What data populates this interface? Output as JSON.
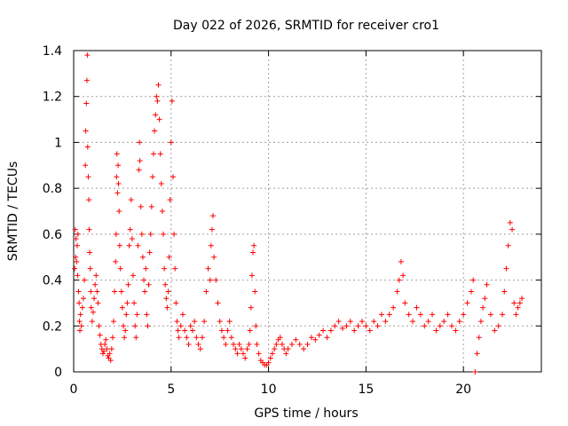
{
  "chart_data": {
    "type": "scatter",
    "title": "Day 022 of 2026, SRMTID for receiver cro1",
    "xlabel": "GPS time / hours",
    "ylabel": "SRMTID / TECUs",
    "xlim": [
      0,
      24
    ],
    "ylim": [
      0,
      1.4
    ],
    "x_ticks": [
      0,
      5,
      10,
      15,
      20
    ],
    "y_ticks": [
      0,
      0.2,
      0.4,
      0.6,
      0.8,
      1,
      1.2,
      1.4
    ],
    "x_tick_labels": [
      "0",
      "5",
      "10",
      "15",
      "20"
    ],
    "y_tick_labels": [
      "0",
      "0.2",
      "0.4",
      "0.6",
      "0.8",
      "1",
      "1.2",
      "1.4"
    ],
    "grid": true,
    "marker": "+",
    "marker_color": "#ff0000",
    "series": [
      {
        "name": "SRMTID",
        "points": [
          [
            0.05,
            0.45
          ],
          [
            0.08,
            0.62
          ],
          [
            0.1,
            0.5
          ],
          [
            0.12,
            0.58
          ],
          [
            0.15,
            0.48
          ],
          [
            0.18,
            0.55
          ],
          [
            0.2,
            0.42
          ],
          [
            0.22,
            0.6
          ],
          [
            0.25,
            0.35
          ],
          [
            0.28,
            0.3
          ],
          [
            0.3,
            0.22
          ],
          [
            0.32,
            0.18
          ],
          [
            0.35,
            0.25
          ],
          [
            0.4,
            0.2
          ],
          [
            0.45,
            0.28
          ],
          [
            0.5,
            0.32
          ],
          [
            0.55,
            0.4
          ],
          [
            0.6,
            0.9
          ],
          [
            0.62,
            1.05
          ],
          [
            0.65,
            1.17
          ],
          [
            0.68,
            1.27
          ],
          [
            0.7,
            1.38
          ],
          [
            0.72,
            0.98
          ],
          [
            0.75,
            0.85
          ],
          [
            0.78,
            0.75
          ],
          [
            0.8,
            0.62
          ],
          [
            0.82,
            0.52
          ],
          [
            0.85,
            0.45
          ],
          [
            0.88,
            0.35
          ],
          [
            0.9,
            0.28
          ],
          [
            0.95,
            0.22
          ],
          [
            1.0,
            0.26
          ],
          [
            1.05,
            0.32
          ],
          [
            1.1,
            0.38
          ],
          [
            1.15,
            0.42
          ],
          [
            1.2,
            0.35
          ],
          [
            1.25,
            0.3
          ],
          [
            1.3,
            0.2
          ],
          [
            1.35,
            0.16
          ],
          [
            1.4,
            0.12
          ],
          [
            1.45,
            0.1
          ],
          [
            1.5,
            0.08
          ],
          [
            1.55,
            0.09
          ],
          [
            1.6,
            0.12
          ],
          [
            1.65,
            0.14
          ],
          [
            1.7,
            0.1
          ],
          [
            1.75,
            0.07
          ],
          [
            1.8,
            0.06
          ],
          [
            1.85,
            0.08
          ],
          [
            1.9,
            0.05
          ],
          [
            1.95,
            0.1
          ],
          [
            2.0,
            0.15
          ],
          [
            2.05,
            0.22
          ],
          [
            2.1,
            0.35
          ],
          [
            2.15,
            0.48
          ],
          [
            2.18,
            0.6
          ],
          [
            2.2,
            0.85
          ],
          [
            2.22,
            0.95
          ],
          [
            2.25,
            0.78
          ],
          [
            2.28,
            0.9
          ],
          [
            2.3,
            0.82
          ],
          [
            2.33,
            0.7
          ],
          [
            2.36,
            0.55
          ],
          [
            2.4,
            0.45
          ],
          [
            2.45,
            0.35
          ],
          [
            2.5,
            0.28
          ],
          [
            2.55,
            0.2
          ],
          [
            2.6,
            0.15
          ],
          [
            2.65,
            0.18
          ],
          [
            2.7,
            0.25
          ],
          [
            2.75,
            0.3
          ],
          [
            2.8,
            0.38
          ],
          [
            2.85,
            0.55
          ],
          [
            2.9,
            0.62
          ],
          [
            2.95,
            0.75
          ],
          [
            3.0,
            0.58
          ],
          [
            3.05,
            0.42
          ],
          [
            3.1,
            0.3
          ],
          [
            3.15,
            0.2
          ],
          [
            3.2,
            0.15
          ],
          [
            3.25,
            0.25
          ],
          [
            3.3,
            0.55
          ],
          [
            3.35,
            0.88
          ],
          [
            3.38,
            1.0
          ],
          [
            3.4,
            0.92
          ],
          [
            3.45,
            0.72
          ],
          [
            3.5,
            0.6
          ],
          [
            3.55,
            0.5
          ],
          [
            3.6,
            0.4
          ],
          [
            3.65,
            0.35
          ],
          [
            3.7,
            0.45
          ],
          [
            3.75,
            0.25
          ],
          [
            3.8,
            0.2
          ],
          [
            3.85,
            0.38
          ],
          [
            3.9,
            0.52
          ],
          [
            3.95,
            0.6
          ],
          [
            4.0,
            0.72
          ],
          [
            4.05,
            0.85
          ],
          [
            4.1,
            0.95
          ],
          [
            4.15,
            1.05
          ],
          [
            4.2,
            1.12
          ],
          [
            4.25,
            1.2
          ],
          [
            4.3,
            1.18
          ],
          [
            4.35,
            1.25
          ],
          [
            4.4,
            1.1
          ],
          [
            4.45,
            0.95
          ],
          [
            4.5,
            0.82
          ],
          [
            4.55,
            0.7
          ],
          [
            4.6,
            0.6
          ],
          [
            4.65,
            0.45
          ],
          [
            4.7,
            0.38
          ],
          [
            4.75,
            0.32
          ],
          [
            4.8,
            0.28
          ],
          [
            4.85,
            0.35
          ],
          [
            4.9,
            0.5
          ],
          [
            4.95,
            0.75
          ],
          [
            5.0,
            1.0
          ],
          [
            5.05,
            1.18
          ],
          [
            5.1,
            0.85
          ],
          [
            5.15,
            0.6
          ],
          [
            5.2,
            0.45
          ],
          [
            5.25,
            0.3
          ],
          [
            5.3,
            0.22
          ],
          [
            5.35,
            0.18
          ],
          [
            5.4,
            0.15
          ],
          [
            5.5,
            0.2
          ],
          [
            5.6,
            0.25
          ],
          [
            5.7,
            0.18
          ],
          [
            5.8,
            0.15
          ],
          [
            5.9,
            0.12
          ],
          [
            6.0,
            0.2
          ],
          [
            6.1,
            0.18
          ],
          [
            6.2,
            0.22
          ],
          [
            6.3,
            0.15
          ],
          [
            6.4,
            0.12
          ],
          [
            6.5,
            0.1
          ],
          [
            6.6,
            0.15
          ],
          [
            6.7,
            0.22
          ],
          [
            6.8,
            0.35
          ],
          [
            6.9,
            0.45
          ],
          [
            7.0,
            0.4
          ],
          [
            7.05,
            0.55
          ],
          [
            7.1,
            0.62
          ],
          [
            7.15,
            0.68
          ],
          [
            7.2,
            0.5
          ],
          [
            7.3,
            0.4
          ],
          [
            7.4,
            0.3
          ],
          [
            7.5,
            0.22
          ],
          [
            7.6,
            0.18
          ],
          [
            7.7,
            0.15
          ],
          [
            7.8,
            0.12
          ],
          [
            7.9,
            0.18
          ],
          [
            8.0,
            0.22
          ],
          [
            8.1,
            0.15
          ],
          [
            8.2,
            0.12
          ],
          [
            8.3,
            0.1
          ],
          [
            8.4,
            0.08
          ],
          [
            8.5,
            0.12
          ],
          [
            8.6,
            0.1
          ],
          [
            8.7,
            0.08
          ],
          [
            8.8,
            0.06
          ],
          [
            8.9,
            0.1
          ],
          [
            9.0,
            0.12
          ],
          [
            9.05,
            0.18
          ],
          [
            9.1,
            0.28
          ],
          [
            9.15,
            0.42
          ],
          [
            9.2,
            0.52
          ],
          [
            9.25,
            0.55
          ],
          [
            9.3,
            0.35
          ],
          [
            9.35,
            0.2
          ],
          [
            9.4,
            0.12
          ],
          [
            9.5,
            0.08
          ],
          [
            9.6,
            0.05
          ],
          [
            9.7,
            0.04
          ],
          [
            9.8,
            0.03
          ],
          [
            9.9,
            0.03
          ],
          [
            10.0,
            0.04
          ],
          [
            10.1,
            0.06
          ],
          [
            10.2,
            0.08
          ],
          [
            10.3,
            0.1
          ],
          [
            10.4,
            0.12
          ],
          [
            10.5,
            0.14
          ],
          [
            10.6,
            0.15
          ],
          [
            10.7,
            0.12
          ],
          [
            10.8,
            0.1
          ],
          [
            10.9,
            0.08
          ],
          [
            11.0,
            0.1
          ],
          [
            11.2,
            0.12
          ],
          [
            11.4,
            0.14
          ],
          [
            11.6,
            0.12
          ],
          [
            11.8,
            0.1
          ],
          [
            12.0,
            0.12
          ],
          [
            12.2,
            0.15
          ],
          [
            12.4,
            0.14
          ],
          [
            12.6,
            0.16
          ],
          [
            12.8,
            0.18
          ],
          [
            13.0,
            0.15
          ],
          [
            13.2,
            0.18
          ],
          [
            13.4,
            0.2
          ],
          [
            13.6,
            0.22
          ],
          [
            13.8,
            0.19
          ],
          [
            14.0,
            0.2
          ],
          [
            14.2,
            0.22
          ],
          [
            14.4,
            0.18
          ],
          [
            14.6,
            0.2
          ],
          [
            14.8,
            0.22
          ],
          [
            15.0,
            0.2
          ],
          [
            15.2,
            0.18
          ],
          [
            15.4,
            0.22
          ],
          [
            15.6,
            0.2
          ],
          [
            15.8,
            0.25
          ],
          [
            16.0,
            0.22
          ],
          [
            16.2,
            0.25
          ],
          [
            16.4,
            0.28
          ],
          [
            16.6,
            0.35
          ],
          [
            16.7,
            0.4
          ],
          [
            16.8,
            0.48
          ],
          [
            16.9,
            0.42
          ],
          [
            17.0,
            0.3
          ],
          [
            17.2,
            0.25
          ],
          [
            17.4,
            0.22
          ],
          [
            17.6,
            0.28
          ],
          [
            17.8,
            0.25
          ],
          [
            18.0,
            0.2
          ],
          [
            18.2,
            0.22
          ],
          [
            18.4,
            0.25
          ],
          [
            18.6,
            0.18
          ],
          [
            18.8,
            0.2
          ],
          [
            19.0,
            0.22
          ],
          [
            19.2,
            0.25
          ],
          [
            19.4,
            0.2
          ],
          [
            19.6,
            0.18
          ],
          [
            19.8,
            0.22
          ],
          [
            20.0,
            0.25
          ],
          [
            20.2,
            0.3
          ],
          [
            20.4,
            0.35
          ],
          [
            20.5,
            0.4
          ],
          [
            20.6,
            0.0
          ],
          [
            20.7,
            0.08
          ],
          [
            20.8,
            0.15
          ],
          [
            20.9,
            0.22
          ],
          [
            21.0,
            0.28
          ],
          [
            21.1,
            0.32
          ],
          [
            21.2,
            0.38
          ],
          [
            21.4,
            0.25
          ],
          [
            21.6,
            0.18
          ],
          [
            21.8,
            0.2
          ],
          [
            22.0,
            0.25
          ],
          [
            22.1,
            0.35
          ],
          [
            22.2,
            0.45
          ],
          [
            22.3,
            0.55
          ],
          [
            22.4,
            0.65
          ],
          [
            22.5,
            0.62
          ],
          [
            22.6,
            0.3
          ],
          [
            22.7,
            0.25
          ],
          [
            22.8,
            0.28
          ],
          [
            22.9,
            0.3
          ],
          [
            23.0,
            0.32
          ]
        ]
      }
    ]
  }
}
